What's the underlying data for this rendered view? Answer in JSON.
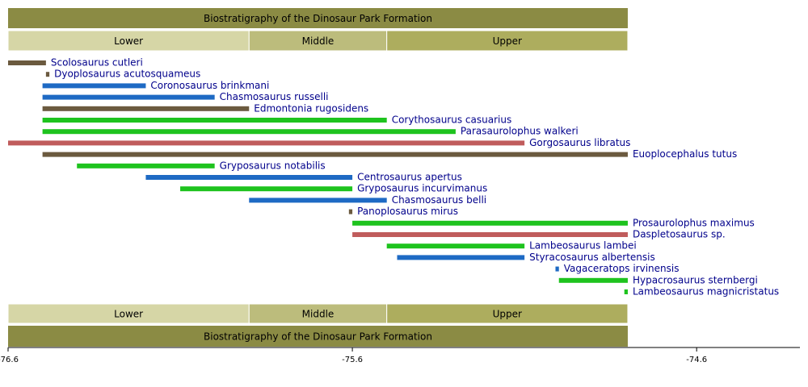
{
  "chart_data": {
    "type": "timeline",
    "title": "Biostratigraphy of the Dinosaur Park Formation",
    "title_color": "#8b8b44",
    "stages": [
      {
        "name": "Lower",
        "values": [
          -76.6,
          -75.9
        ],
        "color": "#d6d6a6"
      },
      {
        "name": "Middle",
        "values": [
          -75.9,
          -75.5
        ],
        "color": "#bcbc7c"
      },
      {
        "name": "Upper",
        "values": [
          -75.5,
          -74.8
        ],
        "color": "#adad5e"
      }
    ],
    "items": [
      {
        "name": "Scolosaurus cutleri",
        "values": [
          -76.6,
          -76.49
        ],
        "color": "#6b5a3f"
      },
      {
        "name": "Dyoplosaurus acutosquameus",
        "values": [
          -76.49,
          -76.48
        ],
        "color": "#6b5a3f"
      },
      {
        "name": "Coronosaurus brinkmani",
        "values": [
          -76.5,
          -76.2
        ],
        "color": "#1e6ac4"
      },
      {
        "name": "Chasmosaurus russelli",
        "values": [
          -76.5,
          -76.0
        ],
        "color": "#1e6ac4"
      },
      {
        "name": "Edmontonia rugosidens",
        "values": [
          -76.5,
          -75.9
        ],
        "color": "#6b5a3f"
      },
      {
        "name": "Corythosaurus casuarius",
        "values": [
          -76.5,
          -75.5
        ],
        "color": "#1ec31e"
      },
      {
        "name": "Parasaurolophus walkeri",
        "values": [
          -76.5,
          -75.3
        ],
        "color": "#1ec31e"
      },
      {
        "name": "Gorgosaurus libratus",
        "values": [
          -76.6,
          -75.1
        ],
        "color": "#c05c5c"
      },
      {
        "name": "Euoplocephalus tutus",
        "values": [
          -76.5,
          -74.8
        ],
        "color": "#6b5a3f"
      },
      {
        "name": "Gryposaurus notabilis",
        "values": [
          -76.4,
          -76.0
        ],
        "color": "#1ec31e"
      },
      {
        "name": "Centrosaurus apertus",
        "values": [
          -76.2,
          -75.6
        ],
        "color": "#1e6ac4"
      },
      {
        "name": "Gryposaurus incurvimanus",
        "values": [
          -76.1,
          -75.6
        ],
        "color": "#1ec31e"
      },
      {
        "name": "Chasmosaurus belli",
        "values": [
          -75.9,
          -75.5
        ],
        "color": "#1e6ac4"
      },
      {
        "name": "Panoplosaurus mirus",
        "values": [
          -75.61,
          -75.6
        ],
        "color": "#6b5a3f"
      },
      {
        "name": "Prosaurolophus maximus",
        "values": [
          -75.6,
          -74.8
        ],
        "color": "#1ec31e"
      },
      {
        "name": "Daspletosaurus sp.",
        "values": [
          -75.6,
          -74.8
        ],
        "color": "#c05c5c"
      },
      {
        "name": "Lambeosaurus lambei",
        "values": [
          -75.5,
          -75.1
        ],
        "color": "#1ec31e"
      },
      {
        "name": "Styracosaurus albertensis",
        "values": [
          -75.47,
          -75.1
        ],
        "color": "#1e6ac4"
      },
      {
        "name": "Vagaceratops irvinensis",
        "values": [
          -75.01,
          -75.0
        ],
        "color": "#1e6ac4"
      },
      {
        "name": "Hypacrosaurus sternbergi",
        "values": [
          -75.0,
          -74.8
        ],
        "color": "#1ec31e"
      },
      {
        "name": "Lambeosaurus magnicristatus",
        "values": [
          -74.81,
          -74.8
        ],
        "color": "#1ec31e"
      }
    ],
    "xlim": [
      -76.6,
      -74.3
    ],
    "xticks": [
      -76.6,
      -75.6,
      -74.6
    ]
  }
}
